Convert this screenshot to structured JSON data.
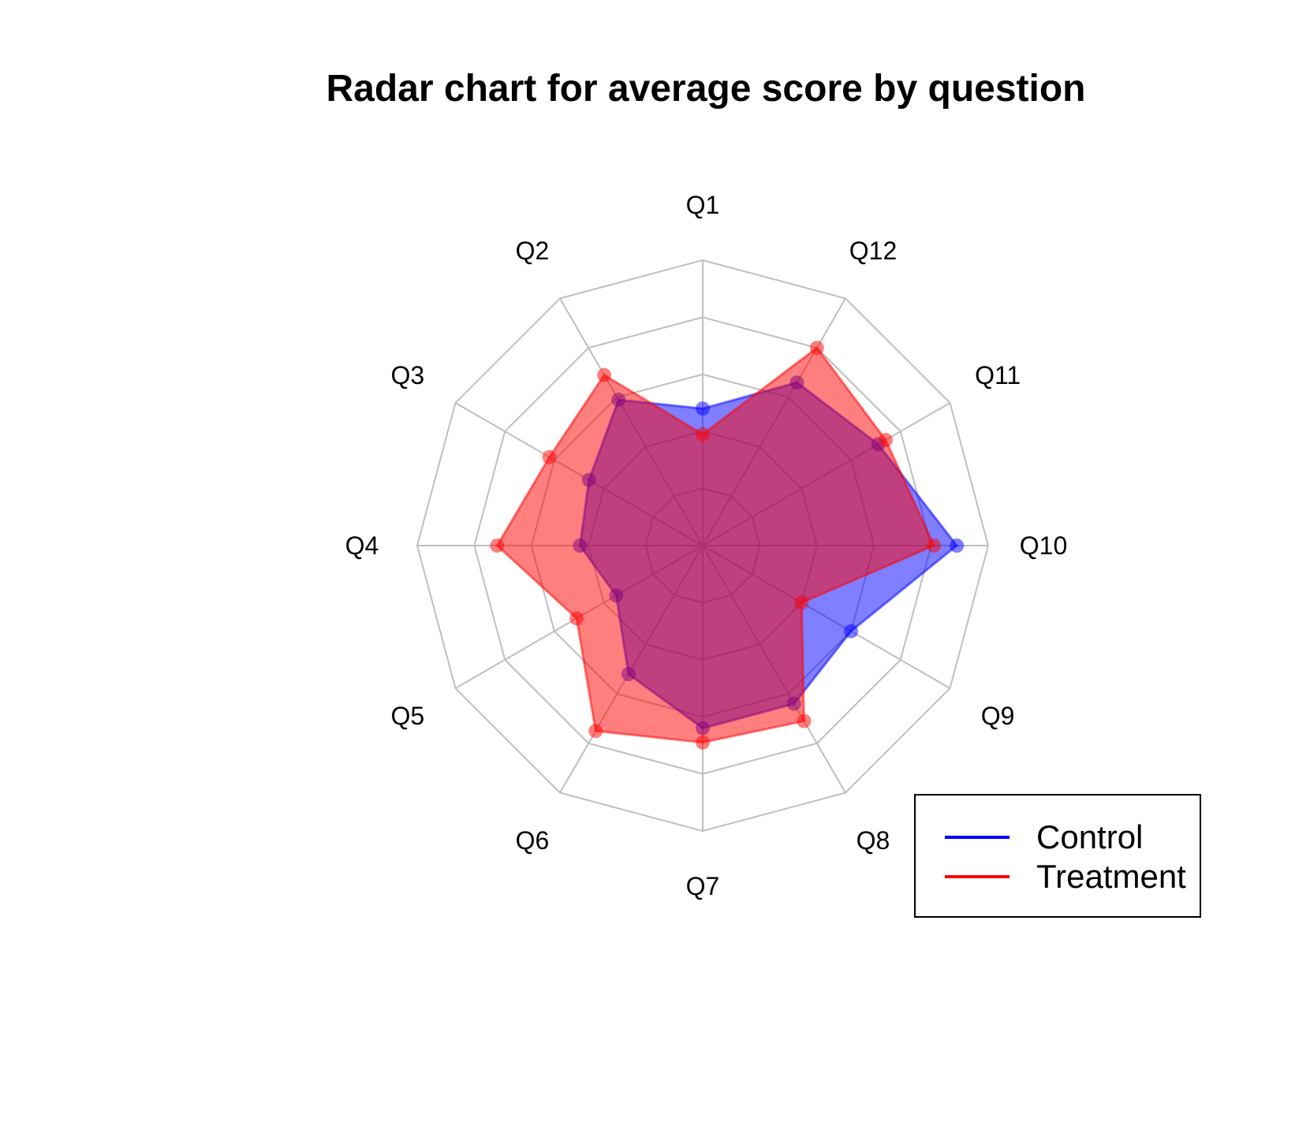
{
  "chart_data": {
    "type": "radar",
    "title": "Radar chart for average score by question",
    "categories": [
      "Q1",
      "Q2",
      "Q3",
      "Q4",
      "Q5",
      "Q6",
      "Q7",
      "Q8",
      "Q9",
      "Q10",
      "Q11",
      "Q12"
    ],
    "scale_max": 5,
    "rings": 5,
    "grid": true,
    "legend_position": "bottom-right",
    "series": [
      {
        "name": "Control",
        "color": "#0000ff",
        "values": [
          2.4,
          2.95,
          2.3,
          2.15,
          1.75,
          2.6,
          3.2,
          3.2,
          3.0,
          4.45,
          3.55,
          3.3
        ]
      },
      {
        "name": "Treatment",
        "color": "#ff0000",
        "values": [
          1.95,
          3.45,
          3.1,
          3.6,
          2.55,
          3.75,
          3.45,
          3.55,
          2.0,
          4.05,
          3.7,
          4.0
        ]
      }
    ]
  }
}
